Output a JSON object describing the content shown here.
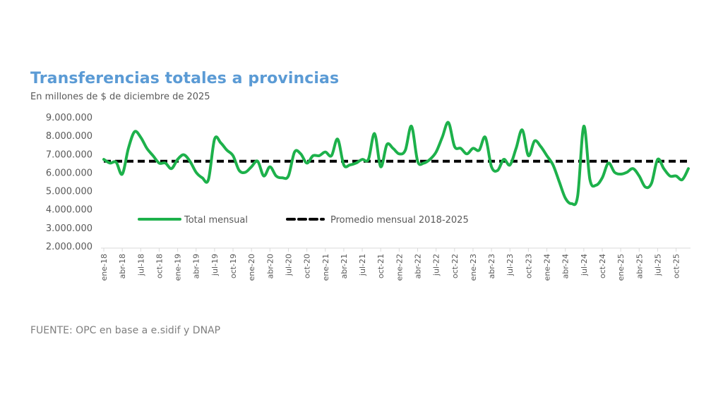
{
  "header": {
    "title": "Transferencias totales a provincias",
    "subtitle": "En millones de $ de diciembre de 2025"
  },
  "footer": {
    "source": "FUENTE: OPC en base a e.sidif y DNAP"
  },
  "colors": {
    "title": "#5b9bd5",
    "series_total": "#1db14b",
    "series_average": "#000000",
    "axis_text": "#595959"
  },
  "chart_data": {
    "type": "line",
    "title": "Transferencias totales a provincias",
    "subtitle": "En millones de $ de diciembre de 2025",
    "xlabel": "",
    "ylabel": "",
    "ylim": [
      2000000,
      9000000
    ],
    "yticks": [
      9000000,
      8000000,
      7000000,
      6000000,
      5000000,
      4000000,
      3000000,
      2000000
    ],
    "ytick_labels": [
      "9.000.000",
      "8.000.000",
      "7.000.000",
      "6.000.000",
      "5.000.000",
      "4.000.000",
      "3.000.000",
      "2.000.000"
    ],
    "grid": false,
    "legend_position": "inside-lower-center",
    "x_tick_every": 3,
    "x_tick_labels": [
      "ene-18",
      "abr-18",
      "jul-18",
      "oct-18",
      "ene-19",
      "abr-19",
      "jul-19",
      "oct-19",
      "ene-20",
      "abr-20",
      "jul-20",
      "oct-20",
      "ene-21",
      "abr-21",
      "jul-21",
      "oct-21",
      "ene-22",
      "abr-22",
      "jul-22",
      "oct-22",
      "ene-23",
      "abr-23",
      "jul-23",
      "oct-23",
      "ene-24",
      "abr-24",
      "jul-24",
      "oct-24",
      "ene-25",
      "abr-25",
      "jul-25",
      "oct-25"
    ],
    "series": [
      {
        "name": "Total mensual",
        "style": "solid",
        "color": "#1db14b",
        "values": [
          6700000,
          6500000,
          6550000,
          5900000,
          7300000,
          8200000,
          7900000,
          7300000,
          6900000,
          6500000,
          6500000,
          6200000,
          6700000,
          6950000,
          6600000,
          6000000,
          5700000,
          5600000,
          7800000,
          7600000,
          7200000,
          6900000,
          6100000,
          6000000,
          6300000,
          6600000,
          5800000,
          6300000,
          5800000,
          5700000,
          5800000,
          7100000,
          7000000,
          6500000,
          6900000,
          6900000,
          7100000,
          6900000,
          7800000,
          6400000,
          6400000,
          6500000,
          6700000,
          6700000,
          8100000,
          6300000,
          7500000,
          7300000,
          7000000,
          7200000,
          8500000,
          6600000,
          6500000,
          6700000,
          7100000,
          7900000,
          8700000,
          7400000,
          7300000,
          7000000,
          7300000,
          7200000,
          7900000,
          6300000,
          6100000,
          6700000,
          6400000,
          7300000,
          8300000,
          6900000,
          7700000,
          7400000,
          6900000,
          6400000,
          5500000,
          4600000,
          4300000,
          4700000,
          8500000,
          5600000,
          5300000,
          5700000,
          6500000,
          6000000,
          5900000,
          6000000,
          6200000,
          5800000,
          5200000,
          5400000,
          6700000,
          6200000,
          5800000,
          5800000,
          5600000,
          6200000
        ]
      },
      {
        "name": "Promedio mensual 2018-2025",
        "style": "dashed",
        "color": "#000000",
        "constant": 6600000
      }
    ]
  }
}
